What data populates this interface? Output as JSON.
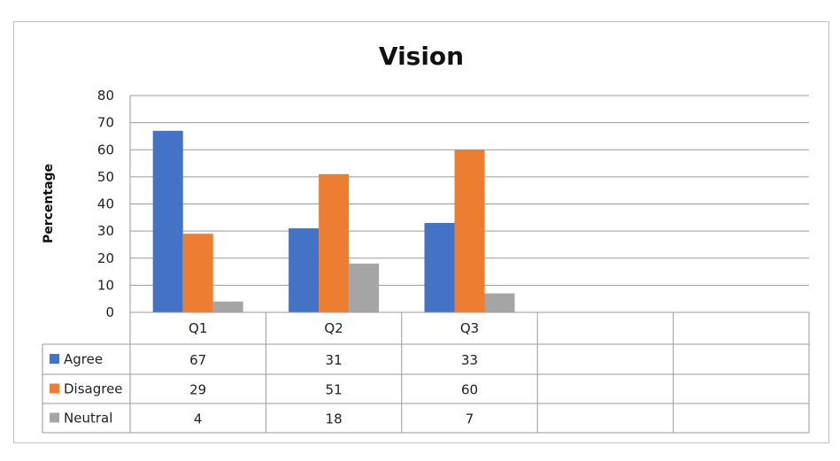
{
  "chart_data": {
    "type": "bar",
    "title": "Vision",
    "ylabel": "Percentage",
    "xlabel": "",
    "ylim": [
      0,
      80
    ],
    "yticks": [
      0,
      10,
      20,
      30,
      40,
      50,
      60,
      70,
      80
    ],
    "grid": true,
    "categories": [
      "Q1",
      "Q2",
      "Q3",
      "",
      ""
    ],
    "series": [
      {
        "name": "Agree",
        "color": "#4472c4",
        "values": [
          67,
          31,
          33,
          null,
          null
        ]
      },
      {
        "name": "Disagree",
        "color": "#ed7d31",
        "values": [
          29,
          51,
          60,
          null,
          null
        ]
      },
      {
        "name": "Neutral",
        "color": "#a5a5a5",
        "values": [
          4,
          18,
          7,
          null,
          null
        ]
      }
    ],
    "legend": "data-table"
  }
}
